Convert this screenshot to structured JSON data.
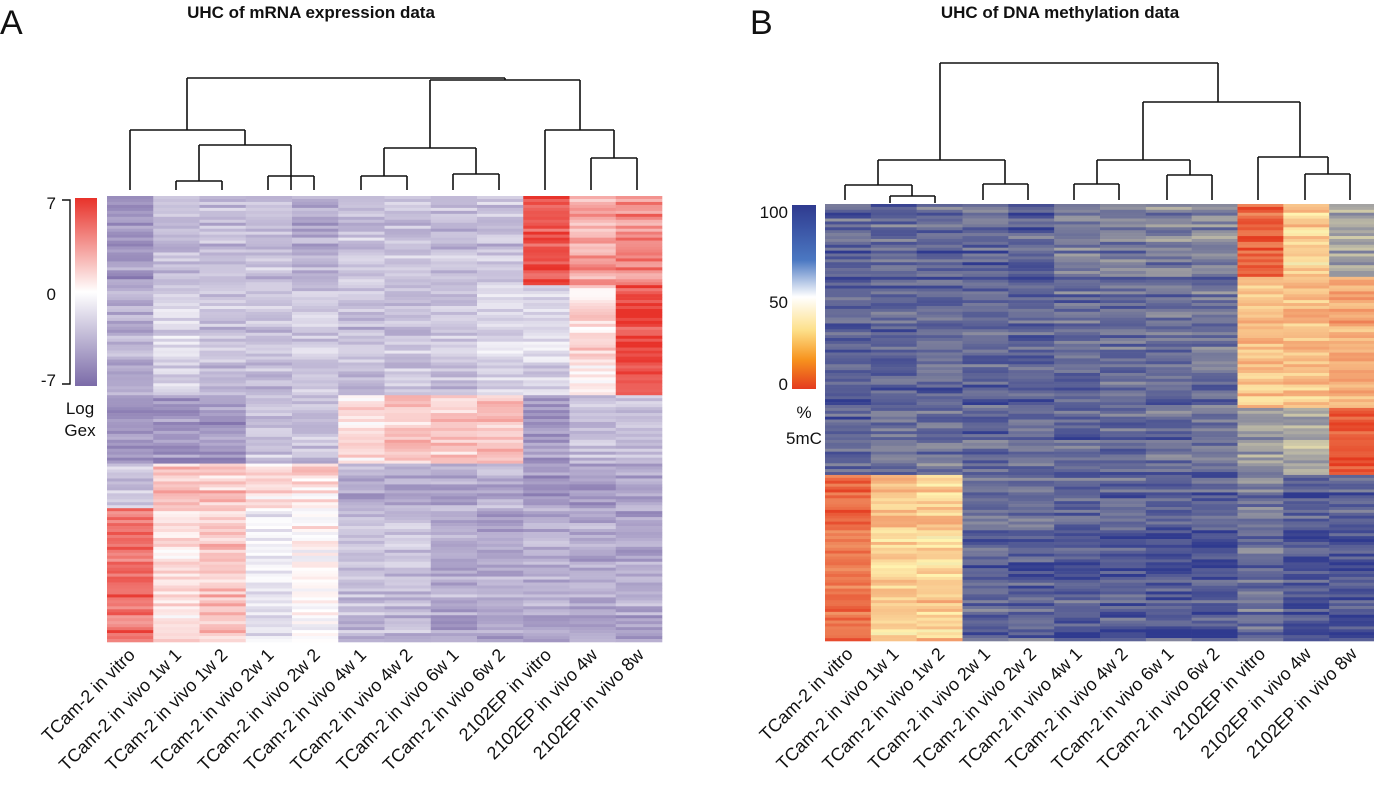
{
  "panels": [
    {
      "letter": "A",
      "title": "UHC of mRNA expression data",
      "chart_data": {
        "type": "heatmap",
        "title": "UHC of mRNA expression data",
        "columns": [
          "TCam-2 in vitro",
          "TCam-2 in vivo 1w 1",
          "TCam-2 in vivo 1w 2",
          "TCam-2 in vivo 2w 1",
          "TCam-2 in vivo 2w 2",
          "TCam-2 in vivo 4w 1",
          "TCam-2 in vivo 4w 2",
          "TCam-2 in vivo 6w 1",
          "TCam-2 in vivo 6w 2",
          "2102EP in vitro",
          "2102EP in vivo 4w",
          "2102EP in vivo 8w"
        ],
        "colorbar": {
          "ticks": [
            "7",
            "0",
            "-7"
          ],
          "range": [
            -7,
            7
          ],
          "label_lines": [
            "Log",
            "Gex"
          ],
          "colors": {
            "low": "#7b6ba8",
            "mid": "#ffffff",
            "high": "#e8322a"
          }
        },
        "dendrogram": "hierarchical clustering of 12 samples",
        "block_pattern": [
          {
            "row_range": [
              0.0,
              0.2
            ],
            "values": [
              -5,
              -3,
              -3,
              -3,
              -4,
              -3,
              -3,
              -3,
              -3,
              6,
              3,
              4
            ]
          },
          {
            "row_range": [
              0.2,
              0.45
            ],
            "values": [
              -4,
              -2,
              -3,
              -3,
              -3,
              -3,
              -3,
              -3,
              -2,
              -2,
              1,
              6
            ]
          },
          {
            "row_range": [
              0.45,
              0.6
            ],
            "values": [
              -5,
              -5,
              -5,
              -3,
              -3,
              1,
              2,
              2,
              2,
              -5,
              -3,
              -3
            ]
          },
          {
            "row_range": [
              0.6,
              0.7
            ],
            "values": [
              -3,
              2,
              2,
              1,
              1,
              -4,
              -4,
              -4,
              -4,
              -5,
              -5,
              -4
            ]
          },
          {
            "row_range": [
              0.7,
              1.0
            ],
            "values": [
              5,
              1,
              2,
              -1,
              0,
              -3,
              -3,
              -4,
              -4,
              -4,
              -4,
              -4
            ]
          }
        ]
      }
    },
    {
      "letter": "B",
      "title": "UHC of DNA methylation data",
      "chart_data": {
        "type": "heatmap",
        "title": "UHC of DNA methylation data",
        "columns": [
          "TCam-2 in vitro",
          "TCam-2 in vivo 1w 1",
          "TCam-2 in vivo 1w 2",
          "TCam-2 in vivo 2w 1",
          "TCam-2 in vivo 2w 2",
          "TCam-2 in vivo 4w 1",
          "TCam-2 in vivo 4w 2",
          "TCam-2 in vivo 6w 1",
          "TCam-2 in vivo 6w 2",
          "2102EP in vitro",
          "2102EP in vivo 4w",
          "2102EP in vivo 8w"
        ],
        "colorbar": {
          "ticks": [
            "100",
            "50",
            "0"
          ],
          "range": [
            0,
            100
          ],
          "label_lines": [
            "%",
            "5mC"
          ],
          "colors": {
            "low": "#e43a1f",
            "mid": "#fff4b0",
            "high": "#2f3a8f"
          }
        },
        "dendrogram": "hierarchical clustering of 12 samples",
        "block_pattern": [
          {
            "row_range": [
              0.0,
              0.17
            ],
            "values": [
              88,
              88,
              88,
              88,
              88,
              82,
              82,
              80,
              80,
              10,
              40,
              70
            ]
          },
          {
            "row_range": [
              0.17,
              0.47
            ],
            "values": [
              90,
              88,
              88,
              88,
              88,
              85,
              85,
              85,
              85,
              35,
              35,
              30
            ]
          },
          {
            "row_range": [
              0.47,
              0.62
            ],
            "values": [
              88,
              86,
              86,
              88,
              88,
              88,
              88,
              86,
              86,
              75,
              70,
              8
            ]
          },
          {
            "row_range": [
              0.62,
              1.0
            ],
            "values": [
              15,
              40,
              40,
              88,
              88,
              90,
              90,
              92,
              92,
              85,
              92,
              92
            ]
          }
        ]
      }
    }
  ]
}
